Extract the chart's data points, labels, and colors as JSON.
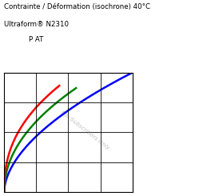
{
  "title_line1": "Contrainte / Déformation (isochrone) 40°C",
  "title_line2": "Ultraform® N2310",
  "title_line3": "P AT",
  "watermark": "For Subscribers Only",
  "line_colors": [
    "#0000ff",
    "#008000",
    "#ff0000"
  ],
  "background_color": "#ffffff",
  "grid_color": "#000000"
}
